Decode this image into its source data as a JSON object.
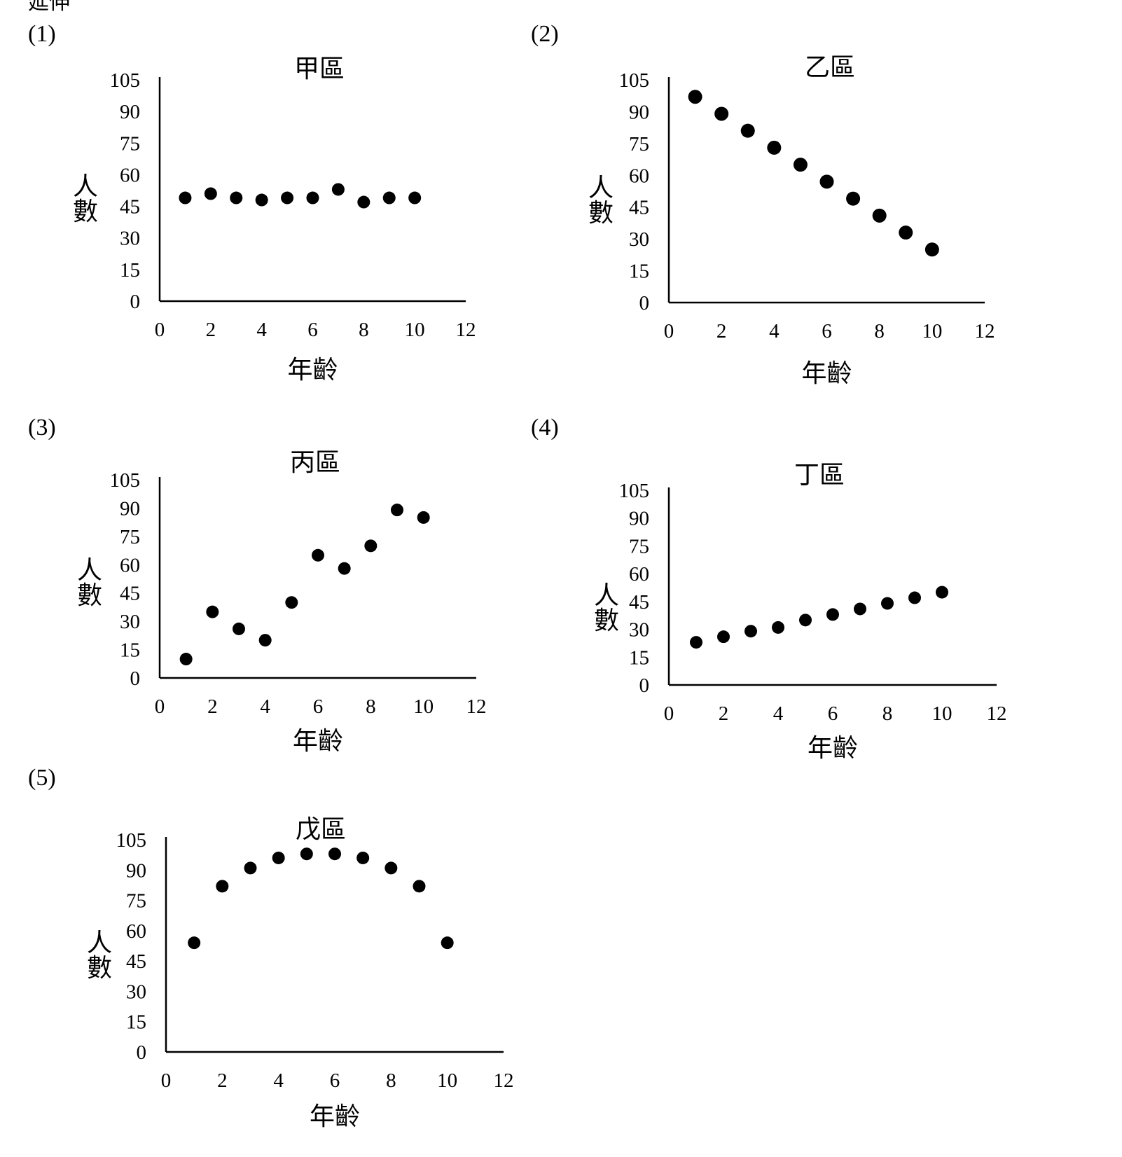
{
  "header_fragment": "延伸",
  "panel_labels": [
    "(1)",
    "(2)",
    "(3)",
    "(4)",
    "(5)"
  ],
  "chart_data": [
    {
      "type": "scatter",
      "title": "甲區",
      "xlabel": "年齡",
      "ylabel": "人數",
      "xlim": [
        0,
        12
      ],
      "ylim": [
        0,
        105
      ],
      "xticks": [
        "0",
        "2",
        "4",
        "6",
        "8",
        "10",
        "12"
      ],
      "yticks": [
        "0",
        "15",
        "30",
        "45",
        "60",
        "75",
        "90",
        "105"
      ],
      "marker_color": "#000000",
      "points": [
        [
          1,
          49
        ],
        [
          2,
          51
        ],
        [
          3,
          49
        ],
        [
          4,
          48
        ],
        [
          5,
          49
        ],
        [
          6,
          49
        ],
        [
          7,
          53
        ],
        [
          8,
          47
        ],
        [
          9,
          49
        ],
        [
          10,
          49
        ]
      ]
    },
    {
      "type": "scatter",
      "title": "乙區",
      "xlabel": "年齡",
      "ylabel": "人數",
      "xlim": [
        0,
        12
      ],
      "ylim": [
        0,
        105
      ],
      "xticks": [
        "0",
        "2",
        "4",
        "6",
        "8",
        "10",
        "12"
      ],
      "yticks": [
        "0",
        "15",
        "30",
        "45",
        "60",
        "75",
        "90",
        "105"
      ],
      "marker_color": "#000000",
      "points": [
        [
          1,
          97
        ],
        [
          2,
          89
        ],
        [
          3,
          81
        ],
        [
          4,
          73
        ],
        [
          5,
          65
        ],
        [
          6,
          57
        ],
        [
          7,
          49
        ],
        [
          8,
          41
        ],
        [
          9,
          33
        ],
        [
          10,
          25
        ]
      ]
    },
    {
      "type": "scatter",
      "title": "丙區",
      "xlabel": "年齡",
      "ylabel": "人數",
      "xlim": [
        0,
        12
      ],
      "ylim": [
        0,
        105
      ],
      "xticks": [
        "0",
        "2",
        "4",
        "6",
        "8",
        "10",
        "12"
      ],
      "yticks": [
        "0",
        "15",
        "30",
        "45",
        "60",
        "75",
        "90",
        "105"
      ],
      "marker_color": "#000000",
      "points": [
        [
          1,
          10
        ],
        [
          2,
          35
        ],
        [
          3,
          26
        ],
        [
          4,
          20
        ],
        [
          5,
          40
        ],
        [
          6,
          65
        ],
        [
          7,
          58
        ],
        [
          8,
          70
        ],
        [
          9,
          89
        ],
        [
          10,
          85
        ]
      ]
    },
    {
      "type": "scatter",
      "title": "丁區",
      "xlabel": "年齡",
      "ylabel": "人數",
      "xlim": [
        0,
        12
      ],
      "ylim": [
        0,
        105
      ],
      "xticks": [
        "0",
        "2",
        "4",
        "6",
        "8",
        "10",
        "12"
      ],
      "yticks": [
        "0",
        "15",
        "30",
        "45",
        "60",
        "75",
        "90",
        "105"
      ],
      "marker_color": "#000000",
      "points": [
        [
          1,
          23
        ],
        [
          2,
          26
        ],
        [
          3,
          29
        ],
        [
          4,
          31
        ],
        [
          5,
          35
        ],
        [
          6,
          38
        ],
        [
          7,
          41
        ],
        [
          8,
          44
        ],
        [
          9,
          47
        ],
        [
          10,
          50
        ]
      ]
    },
    {
      "type": "scatter",
      "title": "戊區",
      "xlabel": "年齡",
      "ylabel": "人數",
      "xlim": [
        0,
        12
      ],
      "ylim": [
        0,
        105
      ],
      "xticks": [
        "0",
        "2",
        "4",
        "6",
        "8",
        "10",
        "12"
      ],
      "yticks": [
        "0",
        "15",
        "30",
        "45",
        "60",
        "75",
        "90",
        "105"
      ],
      "marker_color": "#000000",
      "points": [
        [
          1,
          54
        ],
        [
          2,
          82
        ],
        [
          3,
          91
        ],
        [
          4,
          96
        ],
        [
          5,
          98
        ],
        [
          6,
          98
        ],
        [
          7,
          96
        ],
        [
          8,
          91
        ],
        [
          9,
          82
        ],
        [
          10,
          54
        ]
      ]
    }
  ]
}
